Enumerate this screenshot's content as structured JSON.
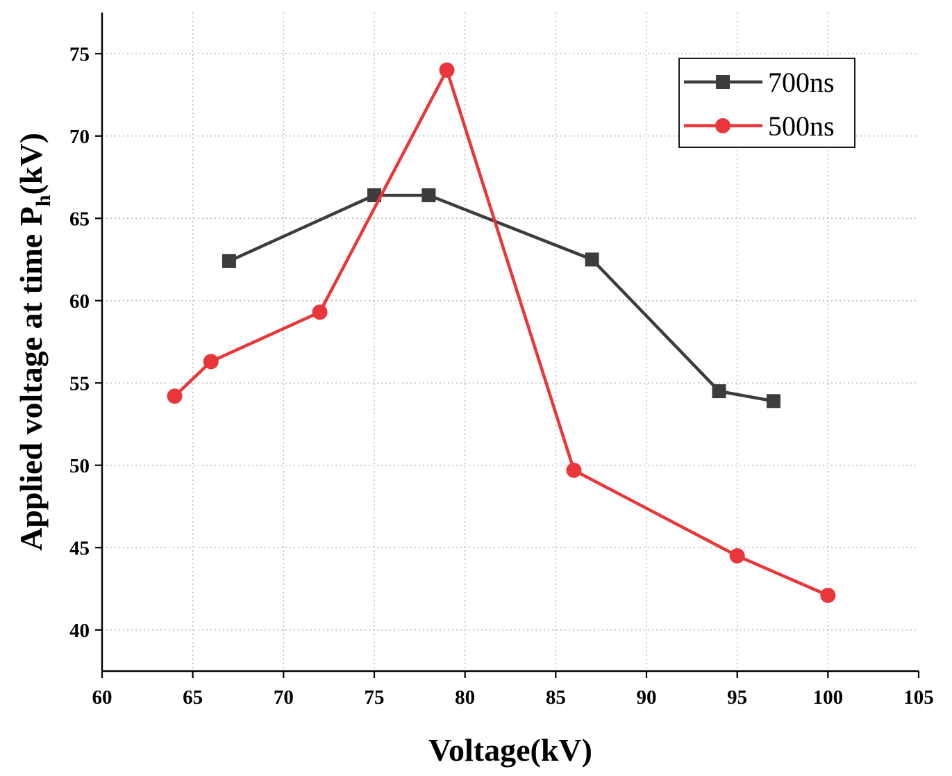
{
  "chart_data": {
    "type": "line",
    "xlabel": "Voltage(kV)",
    "ylabel_main": "Applied voltage at time P",
    "ylabel_sub": "h",
    "ylabel_tail": "(kV)",
    "xlim": [
      60,
      105
    ],
    "ylim": [
      37.5,
      77.5
    ],
    "xticks": [
      60,
      65,
      70,
      75,
      80,
      85,
      90,
      95,
      100,
      105
    ],
    "yticks": [
      40,
      45,
      50,
      55,
      60,
      65,
      70,
      75
    ],
    "grid": true,
    "legend_position": "top-right",
    "series": [
      {
        "name": "700ns",
        "color": "#3c3c3c",
        "marker": "square",
        "x": [
          67,
          75,
          78,
          87,
          94,
          97
        ],
        "y": [
          62.4,
          66.4,
          66.4,
          62.5,
          54.5,
          53.9
        ]
      },
      {
        "name": "500ns",
        "color": "#e8363a",
        "marker": "circle",
        "x": [
          64,
          66,
          72,
          79,
          86,
          95,
          100
        ],
        "y": [
          54.2,
          56.3,
          59.3,
          74.0,
          49.7,
          44.5,
          42.1
        ]
      }
    ]
  }
}
